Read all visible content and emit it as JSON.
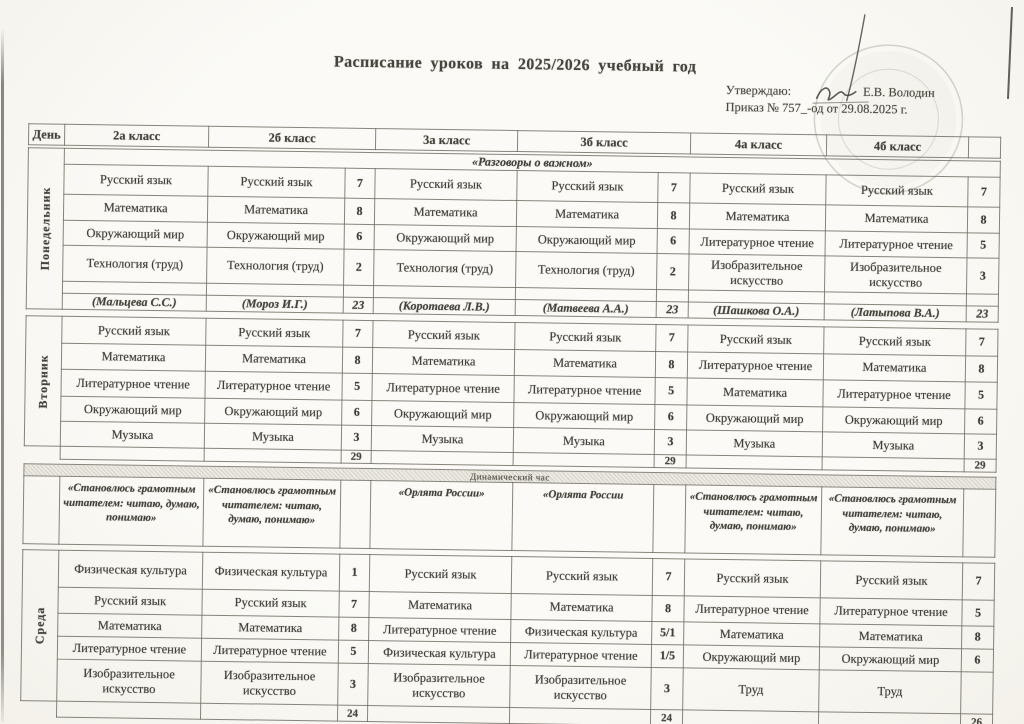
{
  "page": {
    "title": "Расписание уроков на 2025/2026 учебный год"
  },
  "approval": {
    "approve_label": "Утверждаю:",
    "approver": "Е.В. Володин",
    "order": "Приказ № 757_-од от 29.08.2025 г."
  },
  "colors": {
    "paper": "#f9f7f2",
    "ink": "#3f3d37",
    "border": "#8e8b83",
    "stamp": "#7c8570"
  },
  "table": {
    "day_header": "День",
    "class_headers": [
      "2а класс",
      "2б класс",
      "3а класс",
      "3б класс",
      "4а класс",
      "4б класс"
    ],
    "blocks": [
      {
        "day": "Понедельник",
        "banner": "«Разговоры о важном»",
        "rows": [
          [
            "Русский язык",
            "Русский язык",
            "7",
            "Русский язык",
            "Русский язык",
            "7",
            "Русский язык",
            "Русский язык",
            "7"
          ],
          [
            "Математика",
            "Математика",
            "8",
            "Математика",
            "Математика",
            "8",
            "Математика",
            "Математика",
            "8"
          ],
          [
            "Окружающий мир",
            "Окружающий мир",
            "6",
            "Окружающий мир",
            "Окружающий мир",
            "6",
            "Литературное чтение",
            "Литературное чтение",
            "5"
          ],
          [
            "Технология (труд)",
            "Технология (труд)",
            "2",
            "Технология (труд)",
            "Технология (труд)",
            "2",
            "Изобразительное искусство",
            "Изобразительное искусство",
            "3"
          ],
          [
            "",
            "",
            "",
            "",
            "",
            "",
            "",
            "",
            ""
          ],
          [
            "(Мальцева С.С.)",
            "(Мороз И.Г.)",
            "23",
            "(Коротаева Л.В.)",
            "(Матвеева А.А.)",
            "23",
            "(Шашкова О.А.)",
            "(Латыпова В.А.)",
            "23"
          ]
        ]
      },
      {
        "day": "Вторник",
        "banner": "",
        "rows": [
          [
            "Русский язык",
            "Русский язык",
            "7",
            "Русский язык",
            "Русский язык",
            "7",
            "Русский язык",
            "Русский язык",
            "7"
          ],
          [
            "Математика",
            "Математика",
            "8",
            "Математика",
            "Математика",
            "8",
            "Литературное чтение",
            "Математика",
            "8"
          ],
          [
            "Литературное чтение",
            "Литературное чтение",
            "5",
            "Литературное чтение",
            "Литературное чтение",
            "5",
            "Математика",
            "Литературное чтение",
            "5"
          ],
          [
            "Окружающий мир",
            "Окружающий мир",
            "6",
            "Окружающий мир",
            "Окружающий мир",
            "6",
            "Окружающий мир",
            "Окружающий мир",
            "6"
          ],
          [
            "Музыка",
            "Музыка",
            "3",
            "Музыка",
            "Музыка",
            "3",
            "Музыка",
            "Музыка",
            "3"
          ],
          [
            "",
            "",
            "29",
            "",
            "",
            "29",
            "",
            "",
            "29"
          ]
        ]
      },
      {
        "day": "",
        "banner": "Динамический час",
        "rows": [
          [
            "«Становлюсь грамотным читателем: читаю, думаю, понимаю»",
            "«Становлюсь грамотным читателем: читаю, думаю, понимаю»",
            "",
            "«Орлята России»",
            "«Орлята России",
            "",
            "«Становлюсь грамотным читателем: читаю, думаю, понимаю»",
            "«Становлюсь грамотным читателем: читаю, думаю, понимаю»",
            ""
          ]
        ]
      },
      {
        "day": "Среда",
        "banner": "",
        "rows": [
          [
            "Физическая культура",
            "Физическая культура",
            "1",
            "Русский язык",
            "Русский язык",
            "7",
            "Русский язык",
            "Русский язык",
            "7"
          ],
          [
            "Русский язык",
            "Русский язык",
            "7",
            "Математика",
            "Математика",
            "8",
            "Литературное чтение",
            "Литературное чтение",
            "5"
          ],
          [
            "Математика",
            "Математика",
            "8",
            "Литературное чтение",
            "Физическая культура",
            "5/1",
            "Математика",
            "Математика",
            "8"
          ],
          [
            "Литературное чтение",
            "Литературное чтение",
            "5",
            "Физическая культура",
            "Литературное чтение",
            "1/5",
            "Окружающий мир",
            "Окружающий мир",
            "6"
          ],
          [
            "Изобразительное искусство",
            "Изобразительное искусство",
            "3",
            "Изобразительное искусство",
            "Изобразительное искусство",
            "3",
            "Труд",
            "Труд",
            ""
          ],
          [
            "",
            "",
            "24",
            "",
            "",
            "24",
            "",
            "",
            "26"
          ]
        ]
      }
    ]
  }
}
